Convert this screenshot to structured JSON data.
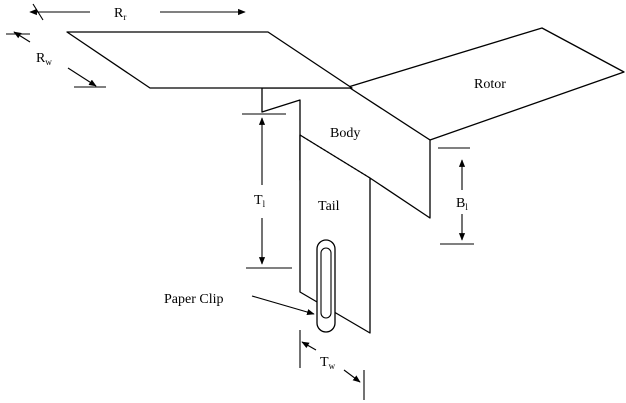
{
  "labels": {
    "rotor_length": {
      "main": "R",
      "sub": "r"
    },
    "rotor_width": {
      "main": "R",
      "sub": "w"
    },
    "rotor": "Rotor",
    "body": "Body",
    "tail": "Tail",
    "tail_length": {
      "main": "T",
      "sub": "l"
    },
    "tail_width": {
      "main": "T",
      "sub": "w"
    },
    "body_length": {
      "main": "B",
      "sub": "l"
    },
    "paper_clip": "Paper Clip"
  },
  "colors": {
    "line": "#000000",
    "fill": "#ffffff"
  }
}
